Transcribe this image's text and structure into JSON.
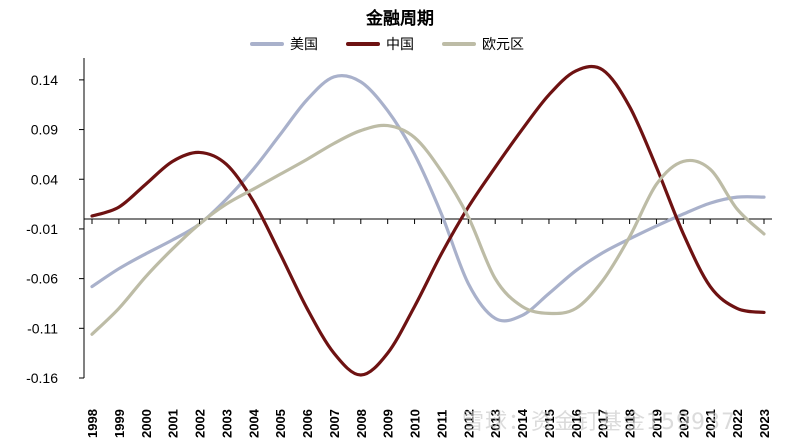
{
  "watermark": "雪球：资金钉基金159937",
  "chart_data": {
    "type": "line",
    "title": "金融周期",
    "x": [
      1998,
      1999,
      2000,
      2001,
      2002,
      2003,
      2004,
      2005,
      2006,
      2007,
      2008,
      2009,
      2010,
      2011,
      2012,
      2013,
      2014,
      2015,
      2016,
      2017,
      2018,
      2019,
      2020,
      2021,
      2022,
      2023
    ],
    "x_tick_labels": [
      "1998",
      "1999",
      "2000",
      "2001",
      "2002",
      "2003",
      "2004",
      "2005",
      "2006",
      "2007",
      "2008",
      "2009",
      "2010",
      "2011",
      "2012",
      "2013",
      "2014",
      "2015",
      "2016",
      "2017",
      "2018",
      "2019",
      "2020",
      "2021",
      "2022",
      "2023"
    ],
    "ylim": [
      -0.16,
      0.16
    ],
    "y_ticks": [
      0.14,
      0.09,
      0.04,
      -0.01,
      -0.06,
      -0.11,
      -0.16
    ],
    "y_tick_labels": [
      "0.14",
      "0.09",
      "0.04",
      "-0.01",
      "-0.06",
      "-0.11",
      "-0.16"
    ],
    "grid": false,
    "legend_position": "top-center",
    "series": [
      {
        "name": "美国",
        "color": "#A9B1CB",
        "values": [
          -0.068,
          -0.05,
          -0.035,
          -0.021,
          -0.005,
          0.02,
          0.05,
          0.085,
          0.12,
          0.143,
          0.138,
          0.109,
          0.065,
          0.005,
          -0.065,
          -0.1,
          -0.097,
          -0.075,
          -0.052,
          -0.034,
          -0.02,
          -0.007,
          0.005,
          0.016,
          0.022,
          0.022
        ]
      },
      {
        "name": "中国",
        "color": "#6E1212",
        "values": [
          0.003,
          0.012,
          0.035,
          0.058,
          0.067,
          0.055,
          0.018,
          -0.035,
          -0.09,
          -0.135,
          -0.157,
          -0.135,
          -0.088,
          -0.035,
          0.012,
          0.052,
          0.09,
          0.125,
          0.149,
          0.15,
          0.113,
          0.052,
          -0.015,
          -0.068,
          -0.09,
          -0.094
        ]
      },
      {
        "name": "欧元区",
        "color": "#BDBCA6",
        "values": [
          -0.116,
          -0.09,
          -0.058,
          -0.03,
          -0.005,
          0.015,
          0.03,
          0.045,
          0.06,
          0.076,
          0.089,
          0.094,
          0.082,
          0.048,
          0.002,
          -0.06,
          -0.088,
          -0.095,
          -0.09,
          -0.062,
          -0.018,
          0.035,
          0.058,
          0.05,
          0.01,
          -0.015
        ]
      }
    ]
  }
}
